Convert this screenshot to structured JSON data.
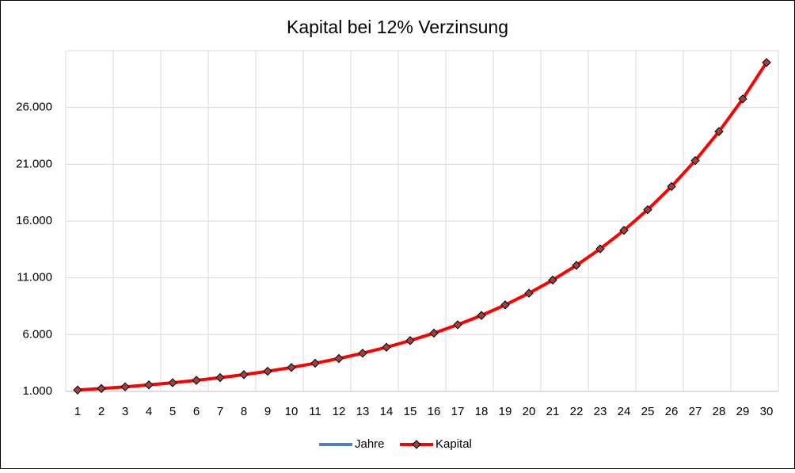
{
  "chart_data": {
    "type": "line",
    "title": "Kapital bei 12% Verzinsung",
    "categories": [
      "1",
      "2",
      "3",
      "4",
      "5",
      "6",
      "7",
      "8",
      "9",
      "10",
      "11",
      "12",
      "13",
      "14",
      "15",
      "16",
      "17",
      "18",
      "19",
      "20",
      "21",
      "22",
      "23",
      "24",
      "25",
      "26",
      "27",
      "28",
      "29",
      "30"
    ],
    "series": [
      {
        "name": "Jahre",
        "color": "#4f81bd"
      },
      {
        "name": "Kapital",
        "color": "#ff0000",
        "marker_color": "#a04040",
        "values": [
          1120,
          1254,
          1405,
          1574,
          1762,
          1974,
          2211,
          2476,
          2773,
          3106,
          3479,
          3896,
          4363,
          4887,
          5474,
          6130,
          6866,
          7690,
          8613,
          9646,
          10804,
          12100,
          13552,
          15179,
          17000,
          19040,
          21325,
          23884,
          26750,
          29960
        ]
      }
    ],
    "ylim": [
      1000,
      31000
    ],
    "yticks": [
      {
        "value": 1000,
        "label": "1.000"
      },
      {
        "value": 6000,
        "label": "6.000"
      },
      {
        "value": 11000,
        "label": "11.000"
      },
      {
        "value": 16000,
        "label": "16.000"
      },
      {
        "value": 21000,
        "label": "21.000"
      },
      {
        "value": 26000,
        "label": "26.000"
      }
    ],
    "grid": true,
    "legend": "bottom"
  }
}
